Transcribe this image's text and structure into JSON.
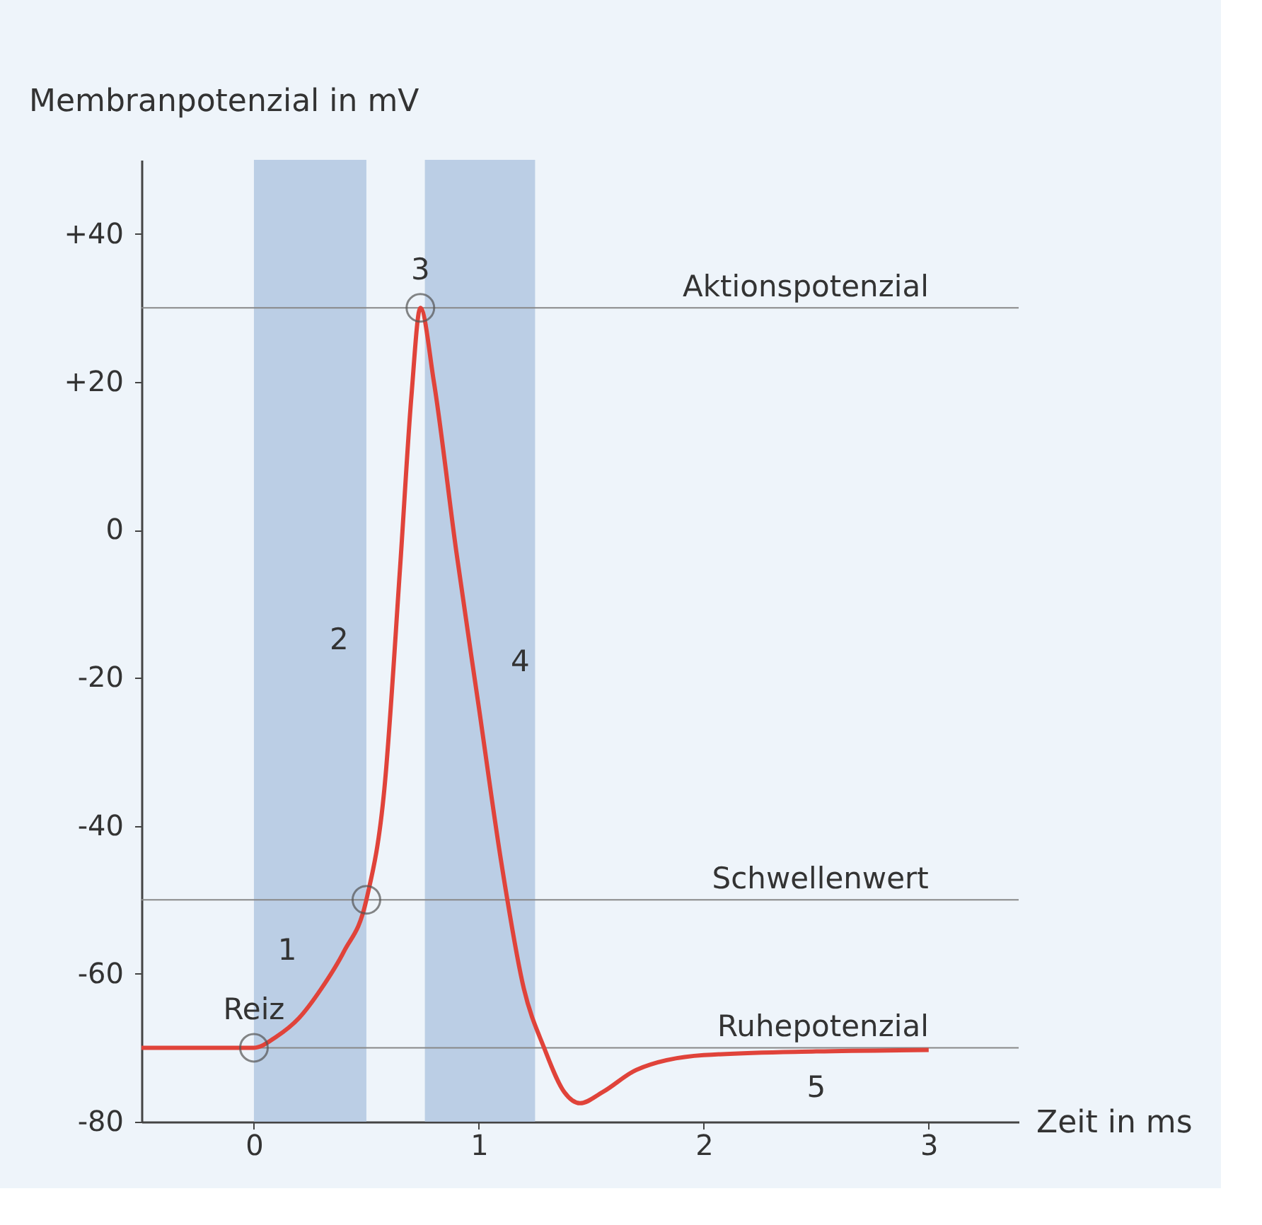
{
  "chart_data": {
    "type": "line",
    "xlabel": "Zeit in ms",
    "ylabel": "Membranpotenzial in mV",
    "xlim": [
      -0.5,
      3.4
    ],
    "ylim": [
      -80,
      50
    ],
    "xticks": [
      0,
      1,
      2,
      3
    ],
    "yticks": [
      {
        "value": 40,
        "label": "+40"
      },
      {
        "value": 20,
        "label": "+20"
      },
      0,
      -20,
      -40,
      -60,
      -80
    ],
    "series": [
      {
        "color": "#e0433a",
        "x": [
          -0.5,
          0,
          0.1,
          0.2,
          0.3,
          0.4,
          0.5,
          0.58,
          0.65,
          0.7,
          0.74,
          0.8,
          0.9,
          1.0,
          1.1,
          1.2,
          1.29,
          1.38,
          1.45,
          1.55,
          1.7,
          2.0,
          2.5,
          3.0
        ],
        "values": [
          -70,
          -70,
          -68.5,
          -66,
          -62,
          -57,
          -50,
          -35,
          -5,
          18,
          30,
          20,
          -3,
          -24,
          -45,
          -62,
          -70,
          -76,
          -77.5,
          -76,
          -73,
          -71,
          -70.5,
          -70.3
        ]
      },
      {
        "type": "scatter",
        "marker": "circle",
        "color": "#555555",
        "x": [
          0,
          0.5,
          0.74
        ],
        "values": [
          -70,
          -50,
          30
        ]
      }
    ],
    "bands": [
      {
        "axis": "x",
        "from": 0,
        "to": 0.5,
        "color": "#aec4e0"
      },
      {
        "axis": "x",
        "from": 0.76,
        "to": 1.25,
        "color": "#aec4e0"
      }
    ],
    "ref_lines": [
      {
        "axis": "y",
        "value": 30,
        "label": "Aktionspotenzial",
        "color": "#888888"
      },
      {
        "axis": "y",
        "value": -50,
        "label": "Schwellenwert",
        "color": "#888888"
      },
      {
        "axis": "y",
        "value": -70,
        "label": "Ruhepotenzial",
        "color": "#888888"
      }
    ],
    "annotations": [
      {
        "text": "Reiz",
        "x": 0,
        "y": -70
      },
      {
        "text": "1",
        "x": 0.4,
        "y": -57
      },
      {
        "text": "2",
        "x": 0.63,
        "y": -15
      },
      {
        "text": "3",
        "x": 0.74,
        "y": 30
      },
      {
        "text": "4",
        "x": 0.97,
        "y": -18
      },
      {
        "text": "5",
        "x": 2.5,
        "y": -70.5
      }
    ],
    "grid": false
  }
}
